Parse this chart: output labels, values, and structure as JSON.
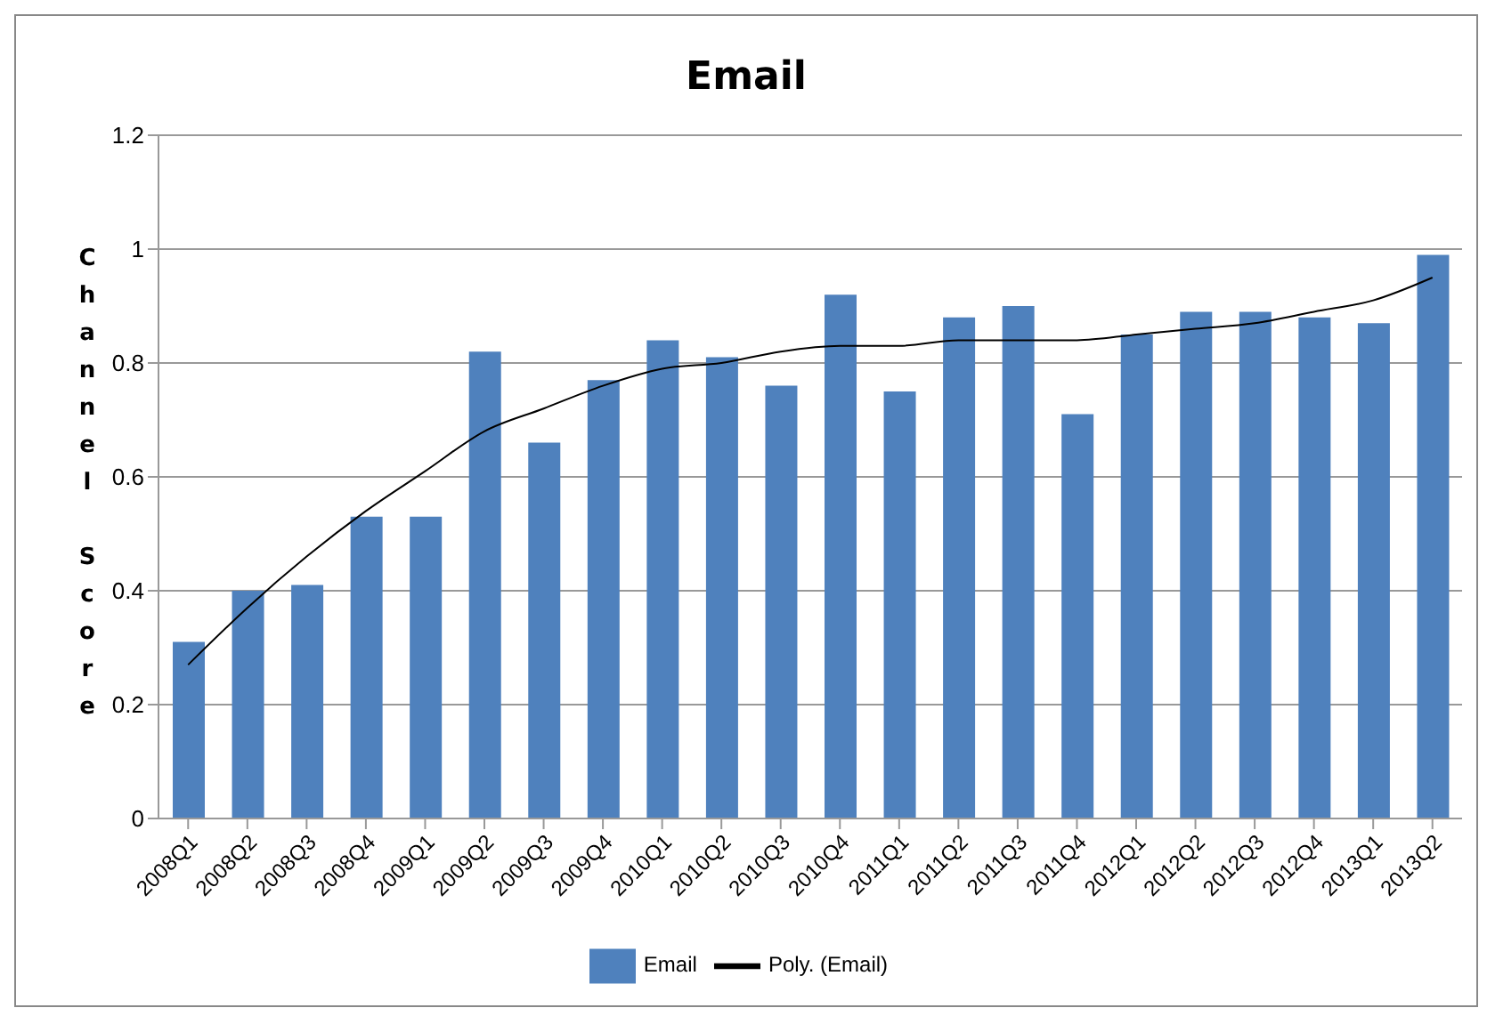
{
  "chart_data": {
    "type": "bar",
    "title": "Email",
    "ylabel": "Channel Score",
    "categories": [
      "2008Q1",
      "2008Q2",
      "2008Q3",
      "2008Q4",
      "2009Q1",
      "2009Q2",
      "2009Q3",
      "2009Q4",
      "2010Q1",
      "2010Q2",
      "2010Q3",
      "2010Q4",
      "2011Q1",
      "2011Q2",
      "2011Q3",
      "2011Q4",
      "2012Q1",
      "2012Q2",
      "2012Q3",
      "2012Q4",
      "2013Q1",
      "2013Q2"
    ],
    "series": [
      {
        "name": "Email",
        "color": "#4f81bd",
        "values": [
          0.31,
          0.4,
          0.41,
          0.53,
          0.53,
          0.82,
          0.66,
          0.77,
          0.84,
          0.81,
          0.76,
          0.92,
          0.75,
          0.88,
          0.9,
          0.71,
          0.85,
          0.89,
          0.89,
          0.88,
          0.87,
          0.99
        ]
      },
      {
        "name": "Poly. (Email)",
        "type": "line",
        "color": "#000000",
        "values": [
          0.27,
          0.37,
          0.46,
          0.54,
          0.61,
          0.68,
          0.72,
          0.76,
          0.79,
          0.8,
          0.82,
          0.83,
          0.83,
          0.84,
          0.84,
          0.84,
          0.85,
          0.86,
          0.87,
          0.89,
          0.91,
          0.95
        ]
      }
    ],
    "ylim": [
      0,
      1.2
    ],
    "yticks": [
      0,
      0.2,
      0.4,
      0.6,
      0.8,
      1,
      1.2
    ],
    "grid": "y",
    "legend": "bottom",
    "marker": "none",
    "line_style": "solid"
  }
}
